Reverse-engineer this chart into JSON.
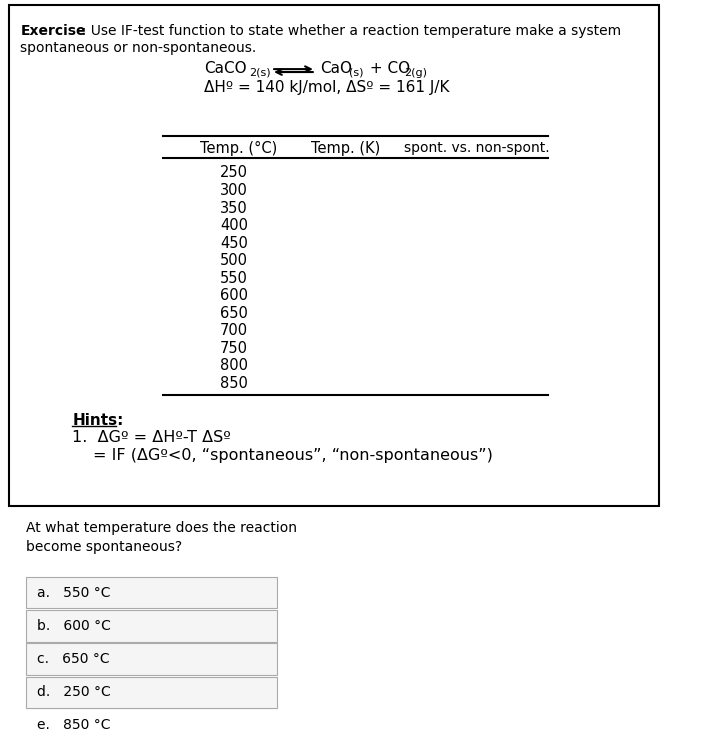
{
  "bg_color": "#ffffff",
  "border_color": "#000000",
  "exercise_bold": "Exercise",
  "exercise_text": "  : Use IF-test function to state whether a reaction temperature make a system\nspontaneous or non-spontaneous.",
  "reaction_line1_left": "CaCO",
  "reaction_line1_left_sub": "2(s)",
  "reaction_line1_right": "CaO",
  "reaction_line1_right_sub": "(s)",
  "reaction_line1_right2": " + CO",
  "reaction_line1_right2_sub": "2(g)",
  "reaction_line2": "ΔHº = 140 kJ/mol, ΔSº = 161 J/K",
  "table_col1": "Temp. (°C)",
  "table_col2": "Temp. (K)",
  "table_col3": "spont. vs. non-spont.",
  "temp_values": [
    250,
    300,
    350,
    400,
    450,
    500,
    550,
    600,
    650,
    700,
    750,
    800,
    850
  ],
  "hints_title": "Hints:",
  "hints_line1": "1.  ΔGº = ΔHº-T ΔSº",
  "hints_line2": "= IF (ΔGº<0, “spontaneous”, “non-spontaneous”)",
  "question_text": "At what temperature does the reaction\nbecome spontaneous?",
  "choices": [
    "a.   550 °C",
    "b.   600 °C",
    "c.   650 °C",
    "d.   250 °C",
    "e.   850 °C"
  ],
  "choice_box_color": "#f0f0f0",
  "outer_box_color": "#cccccc"
}
